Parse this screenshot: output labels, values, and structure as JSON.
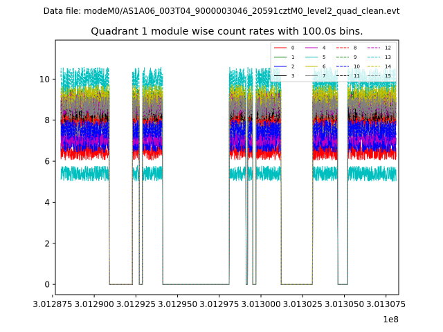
{
  "chart_data": {
    "type": "line",
    "suptitle": "Data file: modeM0/AS1A06_003T04_9000003046_20591cztM0_level2_quad_clean.evt",
    "title": "Quadrant 1 module wise count rates with 100.0s bins.",
    "xlabel": "",
    "ylabel": "",
    "offset_text": "1e8",
    "xlim": [
      3.0128767,
      3.0130826
    ],
    "ylim": [
      -0.5,
      11.9
    ],
    "x_ticks": [
      3.012875,
      3.0129,
      3.012925,
      3.01295,
      3.012975,
      3.013,
      3.013025,
      3.01305,
      3.013075
    ],
    "x_tick_labels": [
      "3.012875",
      "3.012900",
      "3.012925",
      "3.012950",
      "3.012975",
      "3.013000",
      "3.013025",
      "3.013050",
      "3.013075"
    ],
    "y_ticks": [
      0,
      2,
      4,
      6,
      8,
      10
    ],
    "y_tick_labels": [
      "0",
      "2",
      "4",
      "6",
      "8",
      "10"
    ],
    "active_intervals": [
      [
        3.01288,
        3.012909
      ],
      [
        3.012923,
        3.012927
      ],
      [
        3.012929,
        3.012941
      ],
      [
        3.012981,
        3.012991
      ],
      [
        3.012992,
        3.012995
      ],
      [
        3.012997,
        3.013012
      ],
      [
        3.013031,
        3.013046
      ],
      [
        3.013052,
        3.013081
      ]
    ],
    "legend_position": "upper right",
    "legend_columns": 4,
    "series": [
      {
        "name": "0",
        "color": "#ff0000",
        "dash": "solid",
        "level": 6.5
      },
      {
        "name": "1",
        "color": "#008000",
        "dash": "solid",
        "level": 8.7
      },
      {
        "name": "2",
        "color": "#0000ff",
        "dash": "solid",
        "level": 6.9
      },
      {
        "name": "3",
        "color": "#000000",
        "dash": "solid",
        "level": 8.0
      },
      {
        "name": "4",
        "color": "#bf00bf",
        "dash": "solid",
        "level": 7.2
      },
      {
        "name": "5",
        "color": "#00bfbf",
        "dash": "solid",
        "level": 5.4
      },
      {
        "name": "6",
        "color": "#bfbf00",
        "dash": "solid",
        "level": 8.4
      },
      {
        "name": "7",
        "color": "#808080",
        "dash": "solid",
        "level": 7.7
      },
      {
        "name": "8",
        "color": "#ff0000",
        "dash": "dashed",
        "level": 8.2
      },
      {
        "name": "9",
        "color": "#008000",
        "dash": "dashed",
        "level": 8.9
      },
      {
        "name": "10",
        "color": "#0000ff",
        "dash": "dashed",
        "level": 7.5
      },
      {
        "name": "11",
        "color": "#000000",
        "dash": "dashed",
        "level": 8.5
      },
      {
        "name": "12",
        "color": "#bf00bf",
        "dash": "dashed",
        "level": 8.8
      },
      {
        "name": "13",
        "color": "#00bfbf",
        "dash": "dashed",
        "level": 9.9
      },
      {
        "name": "14",
        "color": "#bfbf00",
        "dash": "dashed",
        "level": 9.1
      },
      {
        "name": "15",
        "color": "#808080",
        "dash": "dashed",
        "level": 8.6
      }
    ]
  }
}
